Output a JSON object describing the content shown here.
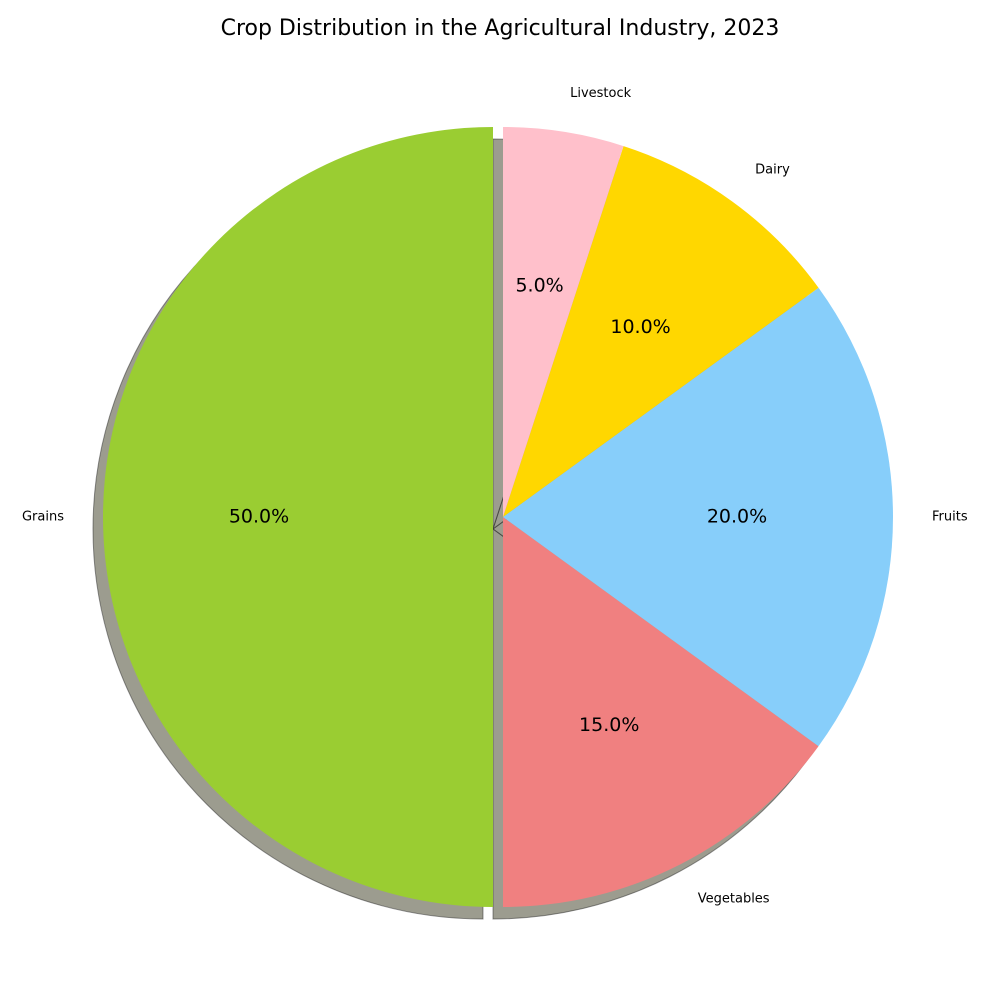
{
  "chart_data": {
    "type": "pie",
    "title": "Crop Distribution in the Agricultural Industry, 2023",
    "categories": [
      "Grains",
      "Vegetables",
      "Fruits",
      "Dairy",
      "Livestock"
    ],
    "values": [
      50,
      15,
      20,
      10,
      5
    ],
    "value_labels": [
      "50.0%",
      "15.0%",
      "20.0%",
      "10.0%",
      "5.0%"
    ],
    "colors": [
      "#9acd32",
      "#f08080",
      "#87cefa",
      "#ffd700",
      "#ffc0cb"
    ],
    "exploded": [
      "Grains"
    ],
    "shadow": true,
    "start_angle_deg": 90,
    "direction": "counterclockwise"
  }
}
